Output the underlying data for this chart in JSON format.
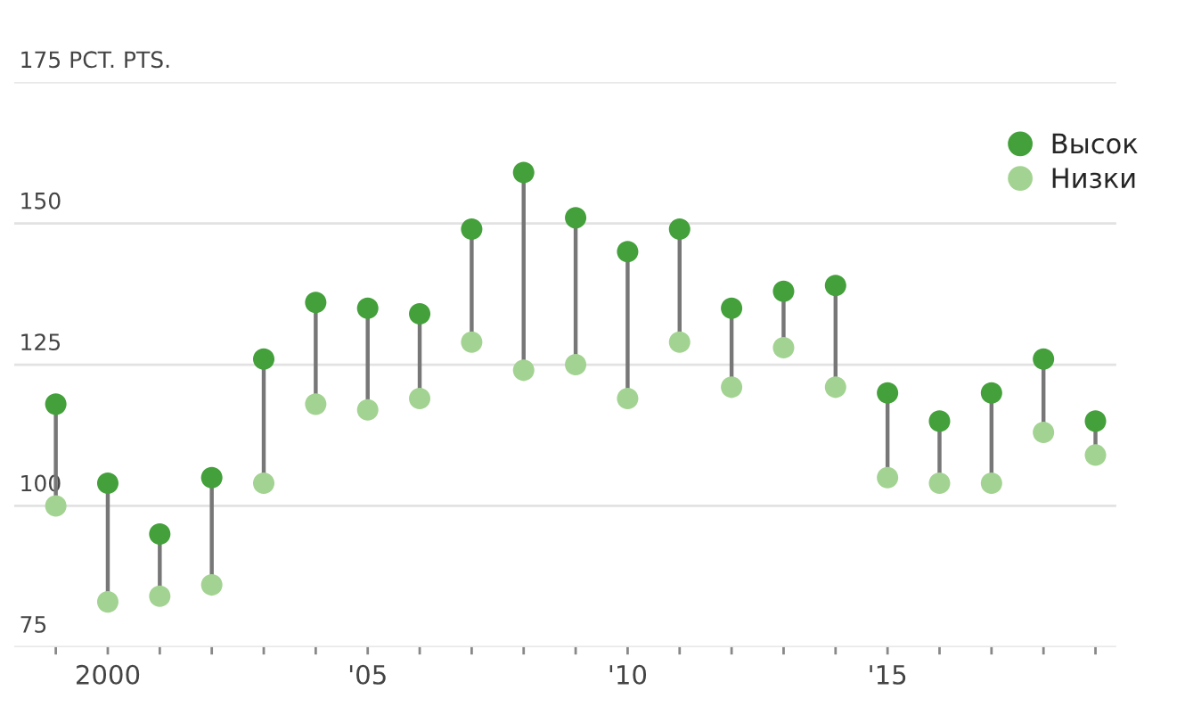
{
  "chart_data": {
    "type": "scatter",
    "x": [
      1999,
      2000,
      2001,
      2002,
      2003,
      2004,
      2005,
      2006,
      2007,
      2008,
      2009,
      2010,
      2011,
      2012,
      2013,
      2014,
      2015,
      2016,
      2017,
      2018,
      2019
    ],
    "series": [
      {
        "name": "Высок",
        "color": "#43a03a",
        "values": [
          118,
          104,
          95,
          105,
          126,
          136,
          135,
          134,
          149,
          159,
          151,
          145,
          149,
          135,
          138,
          139,
          120,
          115,
          120,
          126,
          115
        ]
      },
      {
        "name": "Низки",
        "color": "#a3d392",
        "values": [
          100,
          83,
          84,
          86,
          104,
          118,
          117,
          119,
          129,
          124,
          125,
          119,
          129,
          121,
          128,
          121,
          105,
          104,
          104,
          113,
          109
        ]
      }
    ],
    "xlim": [
      1998.2,
      2019.4
    ],
    "xticks": [
      {
        "value": 1999,
        "label": null
      },
      {
        "value": 2000,
        "label": "2000"
      },
      {
        "value": 2001,
        "label": null
      },
      {
        "value": 2002,
        "label": null
      },
      {
        "value": 2003,
        "label": null
      },
      {
        "value": 2004,
        "label": null
      },
      {
        "value": 2005,
        "label": "'05"
      },
      {
        "value": 2006,
        "label": null
      },
      {
        "value": 2007,
        "label": null
      },
      {
        "value": 2008,
        "label": null
      },
      {
        "value": 2009,
        "label": null
      },
      {
        "value": 2010,
        "label": "'10"
      },
      {
        "value": 2011,
        "label": null
      },
      {
        "value": 2012,
        "label": null
      },
      {
        "value": 2013,
        "label": null
      },
      {
        "value": 2014,
        "label": null
      },
      {
        "value": 2015,
        "label": "'15"
      },
      {
        "value": 2016,
        "label": null
      },
      {
        "value": 2017,
        "label": null
      },
      {
        "value": 2018,
        "label": null
      },
      {
        "value": 2019,
        "label": null
      }
    ],
    "ylim": [
      75,
      175
    ],
    "yticks": [
      75,
      100,
      125,
      150,
      {
        "value": 175,
        "label": "175 PCT. PTS."
      }
    ],
    "grid": "y",
    "legend": "top right",
    "marker": "circle"
  }
}
